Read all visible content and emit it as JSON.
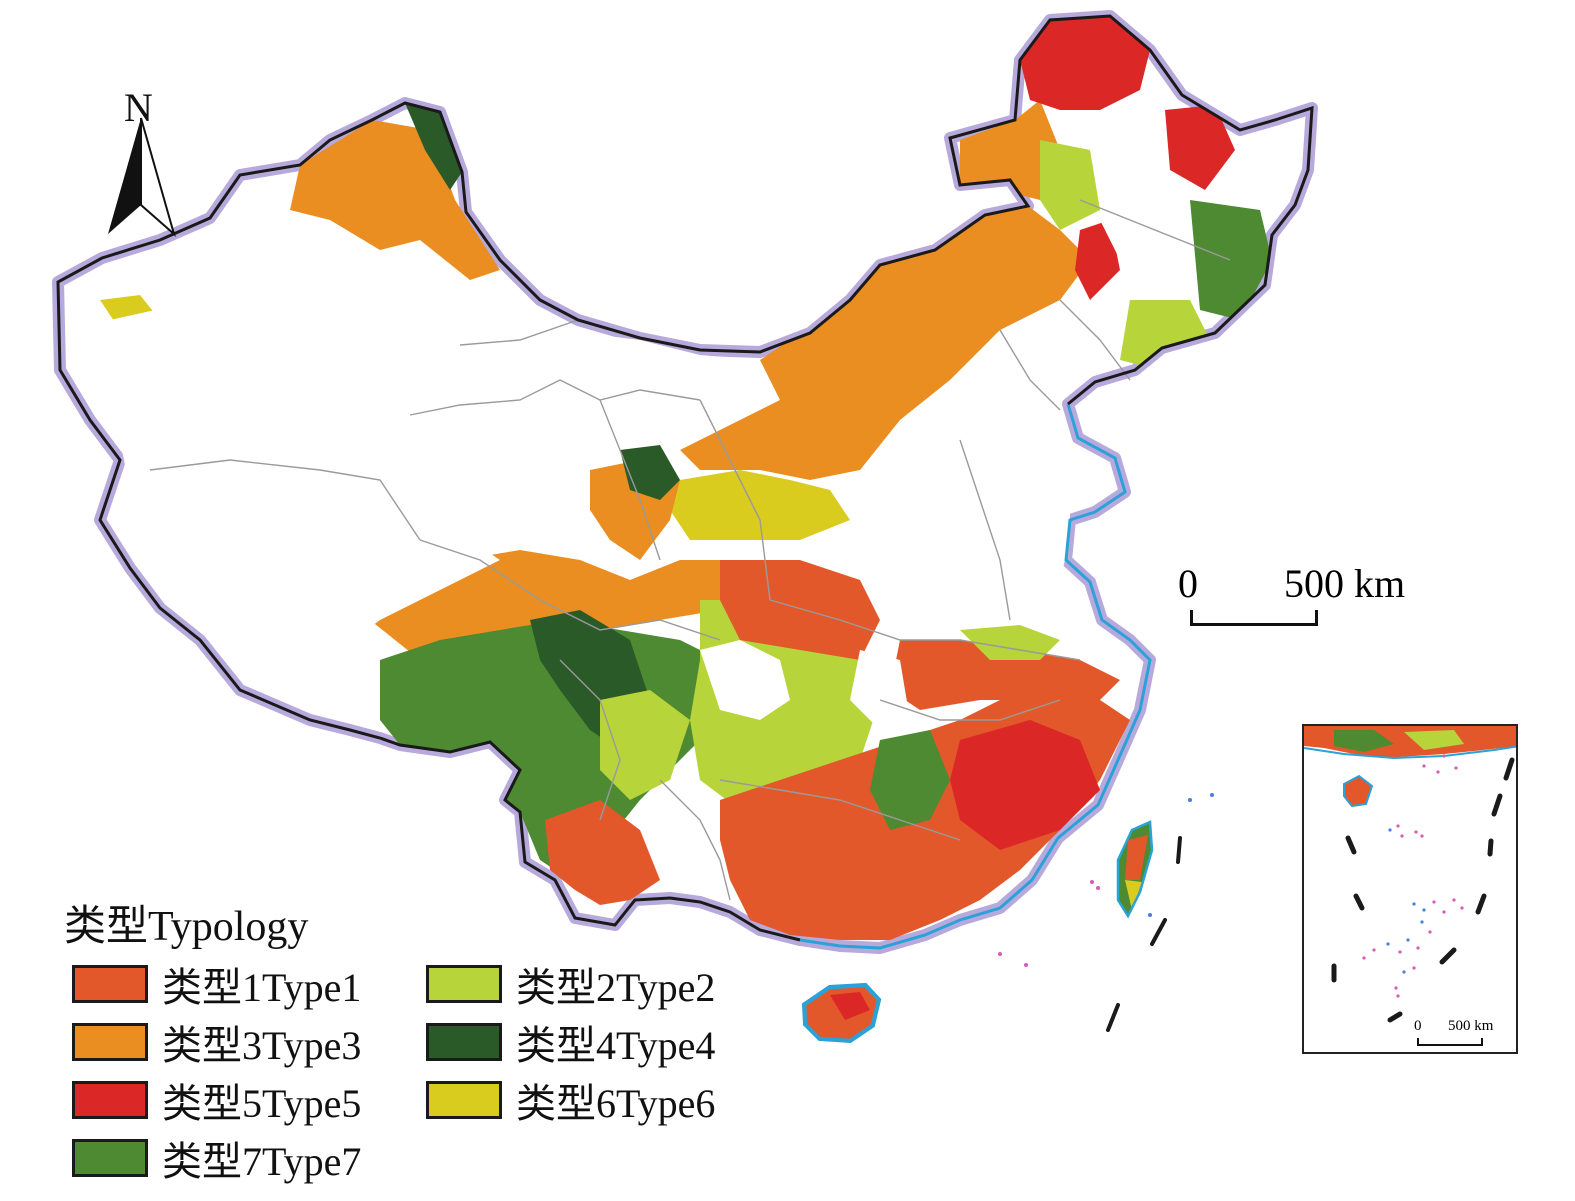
{
  "map": {
    "north_label": "N",
    "scale_zero": "0",
    "scale_distance": "500 km",
    "inset_scale_zero": "0",
    "inset_scale_distance": "500 km",
    "colors": {
      "type1": "#e2582a",
      "type2": "#b7d43b",
      "type3": "#ea8e22",
      "type4": "#2a5a28",
      "type5": "#dc2727",
      "type6": "#dacb1f",
      "type7": "#4d8a31",
      "boundary": "#1a1a1a",
      "boundary_glow": "#b7a9dc",
      "province_line": "#9a9a9a",
      "coastline": "#2aa2d8",
      "island_dots_blue": "#4a7ed8",
      "island_dots_pink": "#d75bb4"
    }
  },
  "legend": {
    "title": "类型Typology",
    "items": [
      {
        "key": "type1",
        "label": "类型1Type1",
        "color": "#e2582a"
      },
      {
        "key": "type2",
        "label": "类型2Type2",
        "color": "#b7d43b"
      },
      {
        "key": "type3",
        "label": "类型3Type3",
        "color": "#ea8e22"
      },
      {
        "key": "type4",
        "label": "类型4Type4",
        "color": "#2a5a28"
      },
      {
        "key": "type5",
        "label": "类型5Type5",
        "color": "#dc2727"
      },
      {
        "key": "type6",
        "label": "类型6Type6",
        "color": "#dacb1f"
      },
      {
        "key": "type7",
        "label": "类型7Type7",
        "color": "#4d8a31"
      }
    ]
  }
}
